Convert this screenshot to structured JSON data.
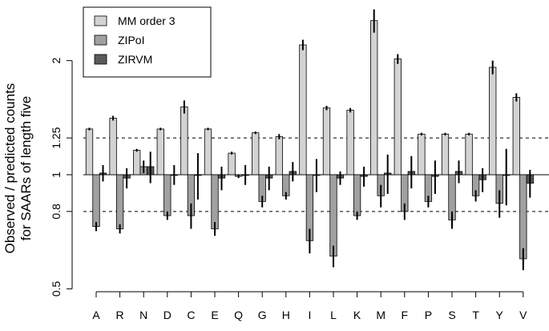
{
  "chart_data": {
    "type": "bar",
    "ylabel": "Observed / predicted counts\nfor SAARs of length five",
    "y_scale": "log",
    "ylim": [
      0.5,
      2.7
    ],
    "y_ticks": [
      0.5,
      0.8,
      1,
      1.25,
      2
    ],
    "y_tick_labels": [
      "0.5",
      "0.8",
      "1",
      "1.25",
      "2"
    ],
    "reference_lines": [
      {
        "value": 1,
        "style": "solid"
      },
      {
        "value": 1.25,
        "style": "dashed"
      },
      {
        "value": 0.8,
        "style": "dashed"
      }
    ],
    "categories": [
      "A",
      "R",
      "N",
      "D",
      "C",
      "E",
      "Q",
      "G",
      "H",
      "I",
      "L",
      "K",
      "M",
      "F",
      "P",
      "S",
      "T",
      "Y",
      "V"
    ],
    "series": [
      {
        "name": "MM order 3",
        "color": "#d3d3d3",
        "values": [
          1.32,
          1.41,
          1.16,
          1.32,
          1.51,
          1.32,
          1.14,
          1.29,
          1.26,
          2.2,
          1.5,
          1.48,
          2.55,
          2.02,
          1.28,
          1.28,
          1.28,
          1.92,
          1.6
        ],
        "errors": [
          0.01,
          0.02,
          0.01,
          0.01,
          0.06,
          0.01,
          0.01,
          0.01,
          0.02,
          0.07,
          0.02,
          0.02,
          0.18,
          0.06,
          0.01,
          0.01,
          0.01,
          0.08,
          0.04
        ]
      },
      {
        "name": "ZIPoI",
        "color": "#a0a0a0",
        "values": [
          0.73,
          0.72,
          1.05,
          0.78,
          0.78,
          0.72,
          0.99,
          0.85,
          0.88,
          0.67,
          0.61,
          0.78,
          0.88,
          0.8,
          0.85,
          0.76,
          0.88,
          0.84,
          0.6
        ],
        "errors": [
          0.02,
          0.02,
          0.04,
          0.02,
          0.06,
          0.03,
          0.01,
          0.03,
          0.02,
          0.05,
          0.04,
          0.02,
          0.06,
          0.04,
          0.03,
          0.04,
          0.03,
          0.07,
          0.04
        ]
      },
      {
        "name": "ZIRVM",
        "color": "#5a5a5a",
        "values": [
          1.01,
          0.98,
          1.05,
          1.0,
          1.0,
          0.98,
          1.0,
          0.98,
          1.02,
          1.0,
          0.98,
          0.99,
          1.01,
          1.02,
          0.99,
          1.02,
          0.97,
          1.0,
          0.95
        ],
        "errors": [
          0.05,
          0.06,
          0.1,
          0.06,
          0.14,
          0.07,
          0.06,
          0.07,
          0.06,
          0.1,
          0.04,
          0.06,
          0.12,
          0.1,
          0.1,
          0.07,
          0.07,
          0.17,
          0.08
        ]
      }
    ],
    "legend": {
      "placement": "top-left",
      "entries": [
        "MM order 3",
        "ZIPoI",
        "ZIRVM"
      ]
    }
  }
}
